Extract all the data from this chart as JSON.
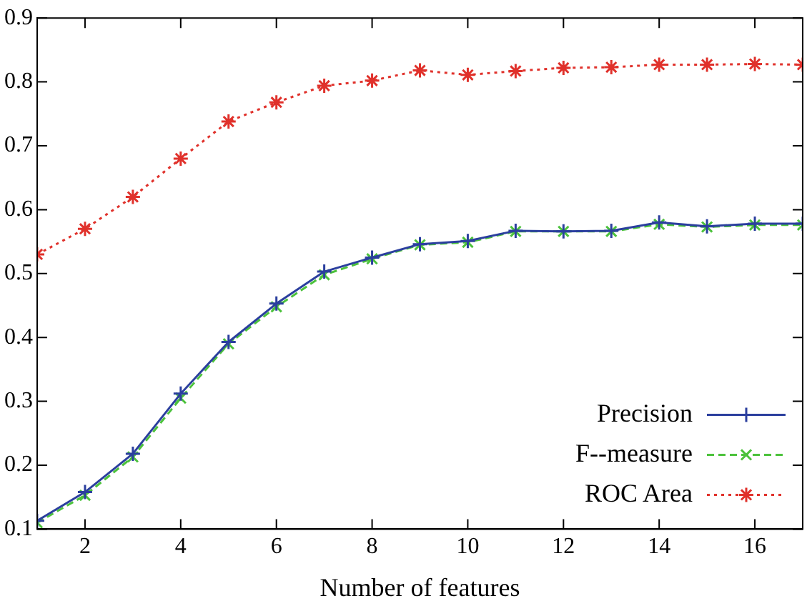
{
  "chart_data": {
    "type": "line",
    "xlabel": "Number of features",
    "x": [
      1,
      2,
      3,
      4,
      5,
      6,
      7,
      8,
      9,
      10,
      11,
      12,
      13,
      14,
      15,
      16,
      17
    ],
    "xlim": [
      1,
      17
    ],
    "xticks": [
      2,
      4,
      6,
      8,
      10,
      12,
      14,
      16
    ],
    "ylim": [
      0.1,
      0.9
    ],
    "yticks": [
      0.1,
      0.2,
      0.3,
      0.4,
      0.5,
      0.6,
      0.7,
      0.8,
      0.9
    ],
    "grid": false,
    "legend": "bottom right",
    "marker": "cross",
    "series": [
      {
        "name": "Precision",
        "color": "#2b3f9e",
        "line_style": "solid",
        "values": [
          0.113,
          0.158,
          0.218,
          0.312,
          0.393,
          0.453,
          0.503,
          0.525,
          0.546,
          0.551,
          0.567,
          0.566,
          0.567,
          0.58,
          0.574,
          0.578,
          0.578
        ]
      },
      {
        "name": "F--measure",
        "color": "#4cc23c",
        "line_style": "dashed",
        "values": [
          0.11,
          0.153,
          0.213,
          0.305,
          0.39,
          0.448,
          0.498,
          0.523,
          0.545,
          0.549,
          0.566,
          0.566,
          0.566,
          0.577,
          0.573,
          0.576,
          0.576
        ]
      },
      {
        "name": "ROC Area",
        "color": "#e0312b",
        "line_style": "dotted",
        "values": [
          0.53,
          0.57,
          0.62,
          0.68,
          0.738,
          0.768,
          0.794,
          0.802,
          0.818,
          0.811,
          0.817,
          0.822,
          0.823,
          0.827,
          0.827,
          0.828,
          0.827
        ]
      }
    ]
  }
}
